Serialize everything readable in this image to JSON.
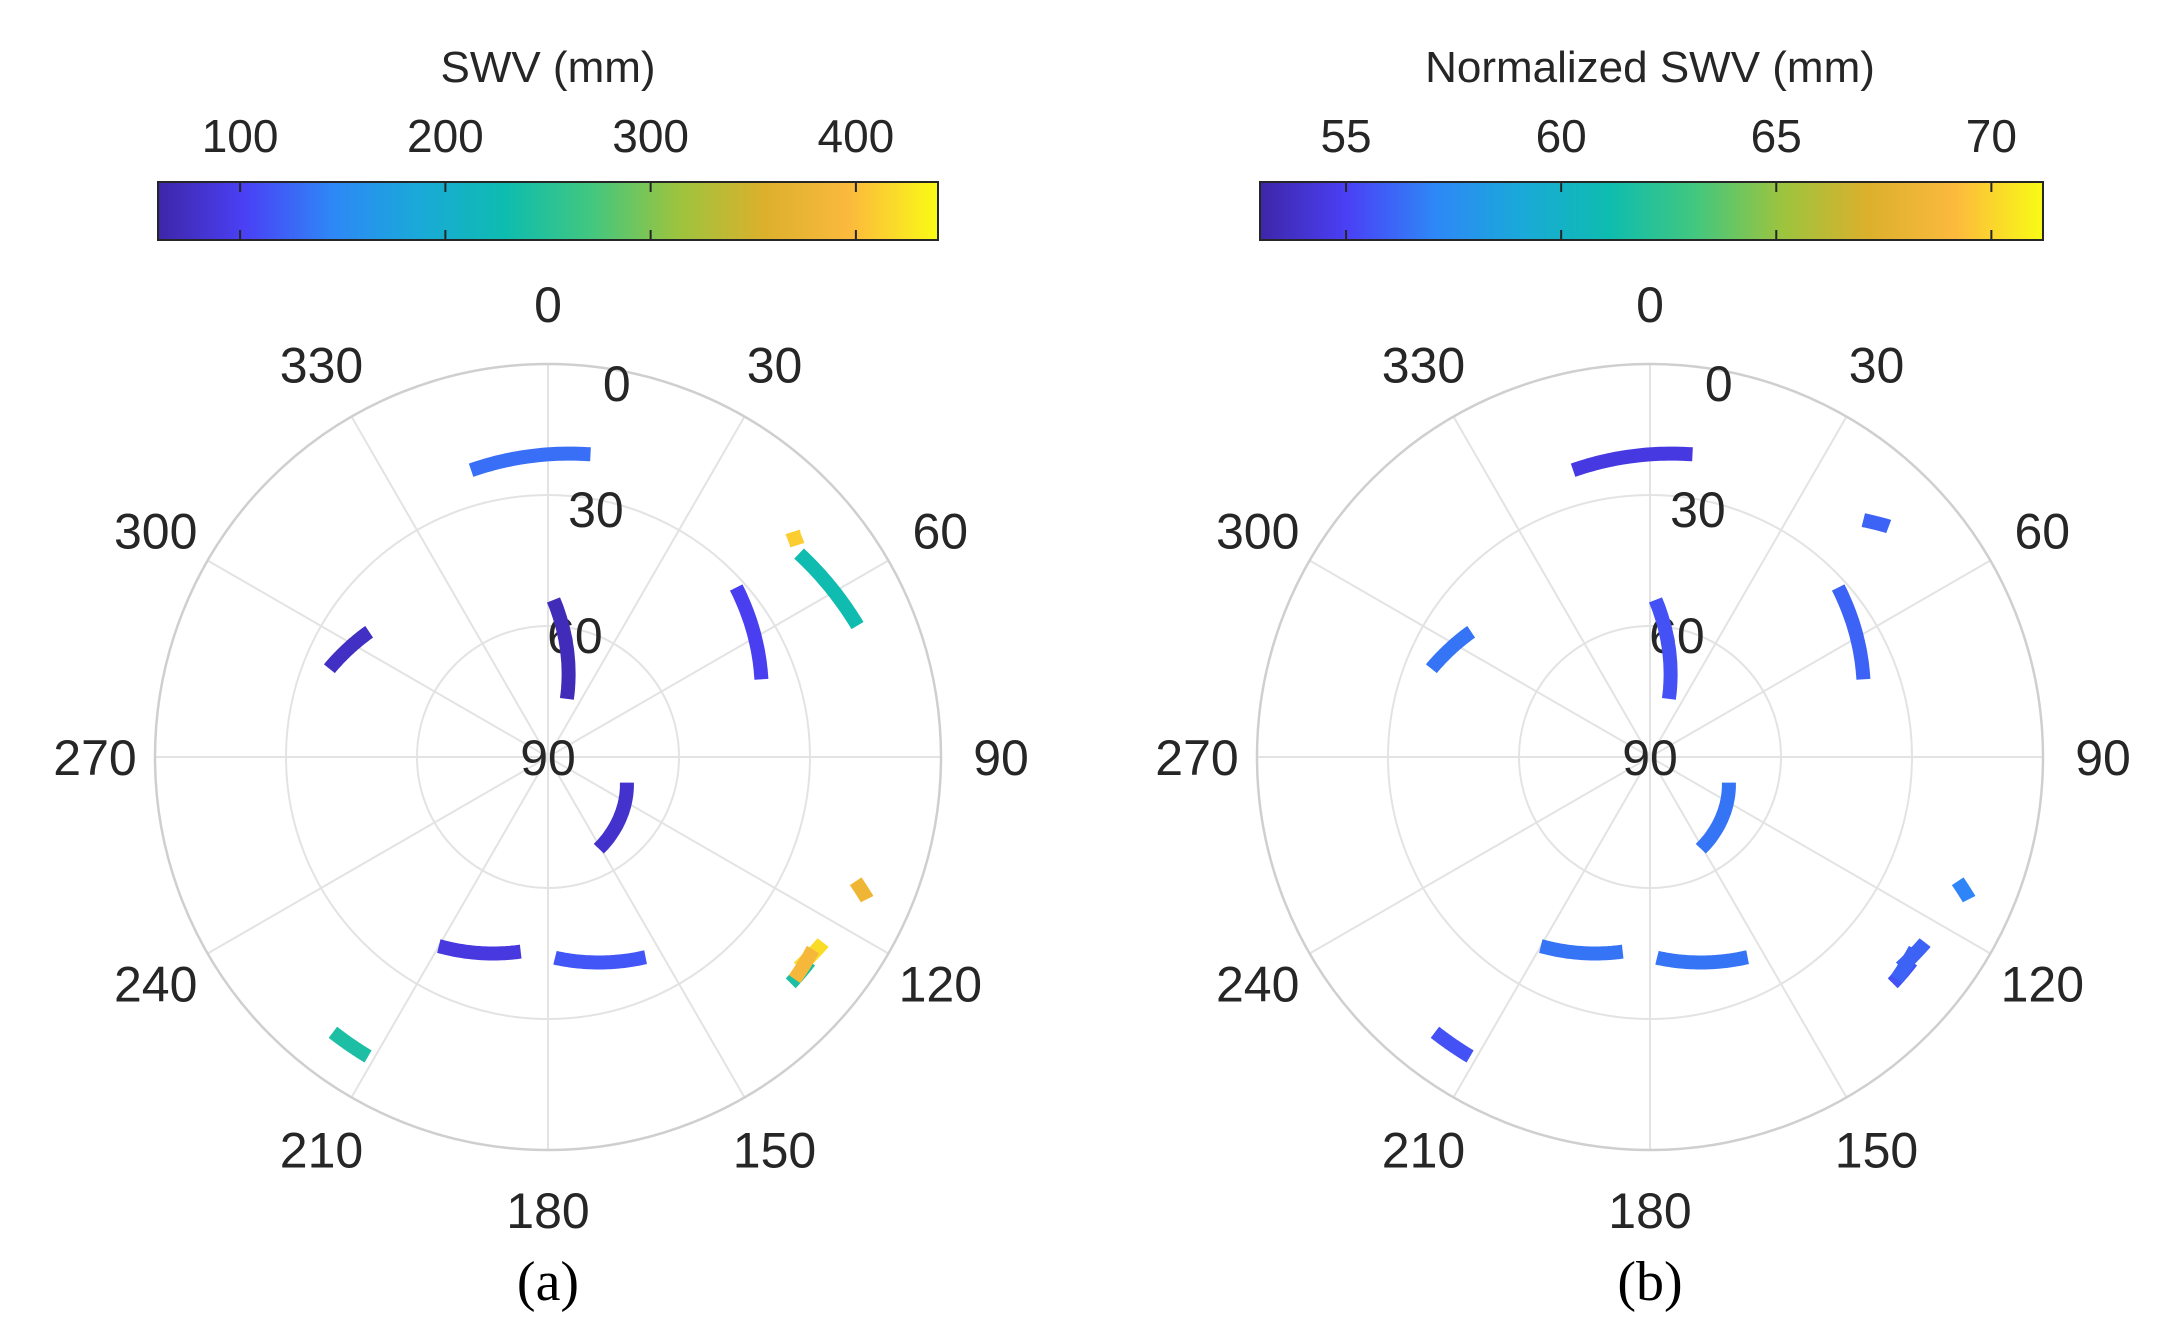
{
  "chart_data": [
    {
      "type": "polar-scatter",
      "panel_label": "(a)",
      "colorbar": {
        "title": "SWV (mm)",
        "range": [
          60,
          440
        ],
        "ticks": [
          100,
          200,
          300,
          400
        ]
      },
      "theta_ticks": [
        "0",
        "30",
        "60",
        "90",
        "120",
        "150",
        "180",
        "210",
        "240",
        "270",
        "300",
        "330"
      ],
      "radial_axis": {
        "direction": "90 at center, 0 at edge",
        "range": [
          0,
          90
        ],
        "ticks": [
          "0",
          "30",
          "60",
          "90"
        ]
      },
      "segments": [
        {
          "theta": [
            -15,
            8
          ],
          "r": [
            22,
            20
          ],
          "value": 130
        },
        {
          "theta": [
            2,
            18
          ],
          "r": [
            54,
            76
          ],
          "value": 70
        },
        {
          "theta": [
            -55,
            -68
          ],
          "r": [
            40,
            36
          ],
          "value": 75
        },
        {
          "theta": [
            48,
            70
          ],
          "r": [
            32,
            38
          ],
          "value": 100
        },
        {
          "theta": [
            48,
            49
          ],
          "r": [
            16,
            13
          ],
          "value": 410
        },
        {
          "theta": [
            67,
            51
          ],
          "r": [
            13,
            16
          ],
          "value": 230
        },
        {
          "theta": [
            108,
            151
          ],
          "r": [
            71,
            66
          ],
          "value": 80
        },
        {
          "theta": [
            112,
            114
          ],
          "r": [
            14,
            10
          ],
          "value": 380
        },
        {
          "theta": [
            130,
            124
          ],
          "r": [
            15,
            14
          ],
          "value": 420
        },
        {
          "theta": [
            133,
            128
          ],
          "r": [
            14,
            14
          ],
          "value": 240
        },
        {
          "theta": [
            132,
            126
          ],
          "r": [
            14,
            15
          ],
          "value": 390
        },
        {
          "theta": [
            178,
            154
          ],
          "r": [
            44,
            39
          ],
          "value": 115
        },
        {
          "theta": [
            188,
            210
          ],
          "r": [
            45,
            40
          ],
          "value": 90
        },
        {
          "theta": [
            211,
            218
          ],
          "r": [
            10,
            10
          ],
          "value": 240
        }
      ]
    },
    {
      "type": "polar-scatter",
      "panel_label": "(b)",
      "colorbar": {
        "title": "Normalized SWV (mm)",
        "range": [
          53,
          71.2
        ],
        "ticks": [
          55,
          60,
          65,
          70
        ]
      },
      "theta_ticks": [
        "0",
        "30",
        "60",
        "90",
        "120",
        "150",
        "180",
        "210",
        "240",
        "270",
        "300",
        "330"
      ],
      "radial_axis": {
        "direction": "90 at center, 0 at edge",
        "range": [
          0,
          90
        ],
        "ticks": [
          "0",
          "30",
          "60",
          "90"
        ]
      },
      "segments": [
        {
          "theta": [
            -15,
            8
          ],
          "r": [
            22,
            20
          ],
          "value": 54.5
        },
        {
          "theta": [
            2,
            18
          ],
          "r": [
            54,
            76
          ],
          "value": 55.5
        },
        {
          "theta": [
            -55,
            -68
          ],
          "r": [
            40,
            36
          ],
          "value": 56.5
        },
        {
          "theta": [
            48,
            70
          ],
          "r": [
            32,
            38
          ],
          "value": 56
        },
        {
          "theta": [
            42,
            46
          ],
          "r": [
            17,
            14
          ],
          "value": 56
        },
        {
          "theta": [
            108,
            151
          ],
          "r": [
            71,
            66
          ],
          "value": 56.5
        },
        {
          "theta": [
            112,
            114
          ],
          "r": [
            14,
            10
          ],
          "value": 57
        },
        {
          "theta": [
            130,
            124
          ],
          "r": [
            15,
            14
          ],
          "value": 56
        },
        {
          "theta": [
            133,
            128
          ],
          "r": [
            14,
            14
          ],
          "value": 55.5
        },
        {
          "theta": [
            132,
            126
          ],
          "r": [
            14,
            15
          ],
          "value": 56
        },
        {
          "theta": [
            178,
            154
          ],
          "r": [
            44,
            39
          ],
          "value": 56.5
        },
        {
          "theta": [
            188,
            210
          ],
          "r": [
            45,
            40
          ],
          "value": 56.5
        },
        {
          "theta": [
            211,
            218
          ],
          "r": [
            10,
            10
          ],
          "value": 55.5
        }
      ]
    }
  ],
  "colormap": [
    "#3e26a8",
    "#4a40f5",
    "#2e87f7",
    "#1aa9d9",
    "#0ebcb0",
    "#42c77f",
    "#9cc43e",
    "#dcb02c",
    "#fcba3d",
    "#f9fb15"
  ]
}
